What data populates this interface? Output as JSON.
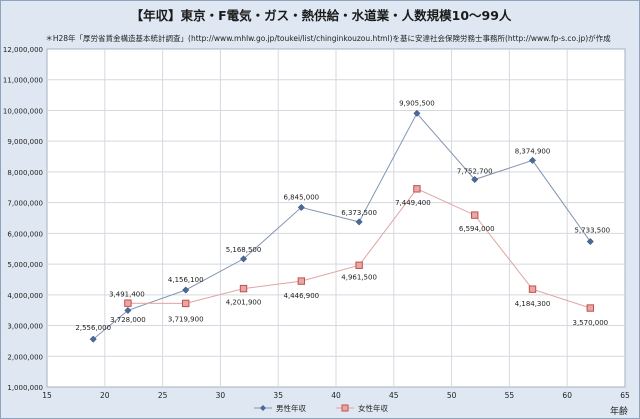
{
  "chart_data": {
    "type": "line",
    "title": "【年収】東京・F電気・ガス・熱供給・水道業・人数規模10～99人",
    "subtitle": "＊H28年「厚労省賃金構造基本統計調査」(http://www.mhlw.go.jp/toukei/list/chinginkouzou.html)を基に安達社会保険労務士事務所(http://www.fp-s.co.jp)が作成",
    "xlabel": "年齢",
    "ylabel": "",
    "xlim": [
      15,
      65
    ],
    "ylim": [
      1000000,
      12000000
    ],
    "x_ticks": [
      15,
      20,
      25,
      30,
      35,
      40,
      45,
      50,
      55,
      60,
      65
    ],
    "x_tick_labels": [
      "15",
      "20",
      "25",
      "30",
      "35",
      "40",
      "45",
      "50",
      "55",
      "60",
      "65"
    ],
    "y_ticks": [
      1000000,
      2000000,
      3000000,
      4000000,
      5000000,
      6000000,
      7000000,
      8000000,
      9000000,
      10000000,
      11000000,
      12000000
    ],
    "y_tick_labels": [
      "1,000,000",
      "2,000,000",
      "3,000,000",
      "4,000,000",
      "5,000,000",
      "6,000,000",
      "7,000,000",
      "8,000,000",
      "9,000,000",
      "10,000,000",
      "11,000,000",
      "12,000,000"
    ],
    "grid": true,
    "legend_position": "bottom",
    "series": [
      {
        "name": "男性年収",
        "color": "#4a6a9c",
        "marker": "diamond",
        "x": [
          19,
          22,
          27,
          32,
          37,
          42,
          47,
          52,
          57,
          62
        ],
        "values": [
          2556000,
          3491400,
          4156100,
          5168500,
          6845000,
          6373500,
          9905500,
          7752700,
          8374900,
          5733500
        ],
        "labels": [
          "2,556,000",
          "3,491,400",
          "4,156,100",
          "5,168,500",
          "6,845,000",
          "6,373,500",
          "9,905,500",
          "7,752,700",
          "8,374,900",
          "5,733,500"
        ]
      },
      {
        "name": "女性年収",
        "color": "#c0504d",
        "marker": "square",
        "x": [
          22,
          27,
          32,
          37,
          42,
          47,
          52,
          57,
          62
        ],
        "values": [
          3728000,
          3719900,
          4201900,
          4446900,
          4961500,
          7449400,
          6594000,
          4184300,
          3570000
        ],
        "labels": [
          "3,728,000",
          "3,719,900",
          "4,201,900",
          "4,446,900",
          "4,961,500",
          "7,449,400",
          "6,594,000",
          "4,184,300",
          "3,570,000"
        ]
      }
    ]
  }
}
